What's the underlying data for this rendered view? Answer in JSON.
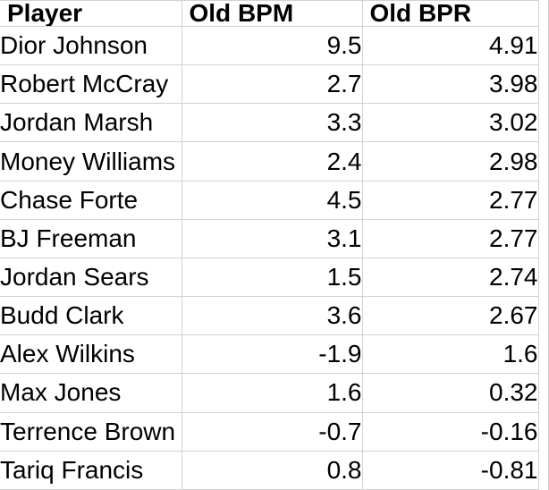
{
  "table": {
    "columns": [
      {
        "key": "player",
        "label": "Player"
      },
      {
        "key": "old_bpm",
        "label": "Old BPM"
      },
      {
        "key": "old_bpr",
        "label": "Old BPR"
      }
    ],
    "rows": [
      {
        "player": "Dior Johnson",
        "old_bpm": "9.5",
        "old_bpr": "4.91"
      },
      {
        "player": "Robert McCray",
        "old_bpm": "2.7",
        "old_bpr": "3.98"
      },
      {
        "player": "Jordan Marsh",
        "old_bpm": "3.3",
        "old_bpr": "3.02"
      },
      {
        "player": "Money Williams",
        "old_bpm": "2.4",
        "old_bpr": "2.98"
      },
      {
        "player": "Chase Forte",
        "old_bpm": "4.5",
        "old_bpr": "2.77"
      },
      {
        "player": "BJ Freeman",
        "old_bpm": "3.1",
        "old_bpr": "2.77"
      },
      {
        "player": "Jordan Sears",
        "old_bpm": "1.5",
        "old_bpr": "2.74"
      },
      {
        "player": "Budd Clark",
        "old_bpm": "3.6",
        "old_bpr": "2.67"
      },
      {
        "player": "Alex Wilkins",
        "old_bpm": "-1.9",
        "old_bpr": "1.6"
      },
      {
        "player": "Max Jones",
        "old_bpm": "1.6",
        "old_bpr": "0.32"
      },
      {
        "player": "Terrence Brown",
        "old_bpm": "-0.7",
        "old_bpr": "-0.16"
      },
      {
        "player": "Tariq Francis",
        "old_bpm": "0.8",
        "old_bpr": "-0.81"
      }
    ]
  },
  "colors": {
    "gridline": "#d2d2d2",
    "text": "#000000",
    "background": "#ffffff"
  }
}
